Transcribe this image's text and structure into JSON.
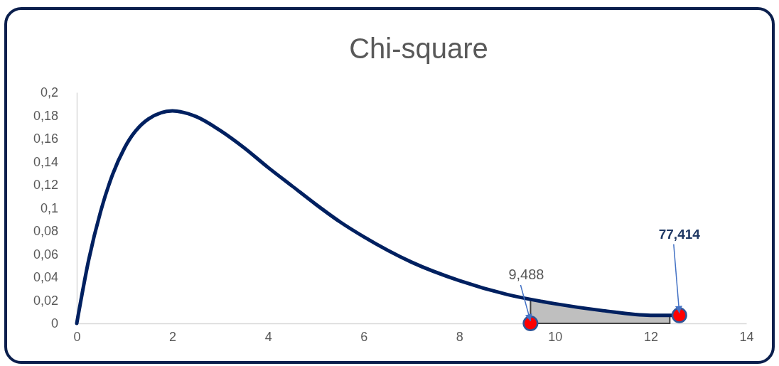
{
  "chart_data": {
    "type": "line",
    "title": "Chi-square",
    "xlim": [
      0,
      14
    ],
    "xticks": [
      0,
      2,
      4,
      6,
      8,
      10,
      12,
      14
    ],
    "ylim": [
      0,
      0.2
    ],
    "yticks": [
      {
        "value": 0,
        "label": "0"
      },
      {
        "value": 0.02,
        "label": "0,02"
      },
      {
        "value": 0.04,
        "label": "0,04"
      },
      {
        "value": 0.06,
        "label": "0,06"
      },
      {
        "value": 0.08,
        "label": "0,08"
      },
      {
        "value": 0.1,
        "label": "0,1"
      },
      {
        "value": 0.12,
        "label": "0,12"
      },
      {
        "value": 0.14,
        "label": "0,14"
      },
      {
        "value": 0.16,
        "label": "0,16"
      },
      {
        "value": 0.18,
        "label": "0,18"
      },
      {
        "value": 0.2,
        "label": "0,2"
      }
    ],
    "grid": false,
    "series": [
      {
        "type": "area",
        "color": "#bfbfbf",
        "x": [
          9.488,
          10,
          11,
          12,
          12.4
        ],
        "values": [
          0.021,
          0.017,
          0.011,
          0.007,
          0.007
        ]
      },
      {
        "color": "#002060",
        "marker": "none",
        "line_style": "solid",
        "x": [
          0,
          0.25,
          0.5,
          0.75,
          1,
          1.5,
          2,
          2.5,
          3,
          3.5,
          4,
          4.5,
          5,
          5.5,
          6,
          7,
          8,
          9,
          10,
          11,
          12,
          12.6
        ],
        "values": [
          0,
          0.055,
          0.097,
          0.129,
          0.152,
          0.177,
          0.184,
          0.179,
          0.167,
          0.152,
          0.135,
          0.119,
          0.103,
          0.088,
          0.075,
          0.053,
          0.037,
          0.025,
          0.017,
          0.011,
          0.007,
          0.007
        ]
      },
      {
        "type": "scatter",
        "color": "#ff0000",
        "marker": "circle",
        "x": [
          9.488,
          12.6
        ],
        "values": [
          0,
          0.007
        ]
      }
    ],
    "annotations": [
      {
        "text": "9,488",
        "x": 9.488,
        "y": 0
      },
      {
        "text": "77,414",
        "x": 12.6,
        "y": 0.007
      }
    ]
  }
}
